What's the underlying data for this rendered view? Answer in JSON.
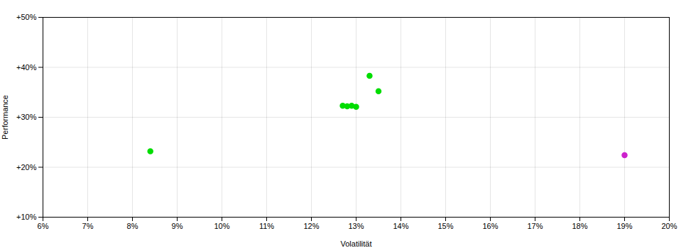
{
  "chart_data": {
    "type": "scatter",
    "xlabel": "Volatilität",
    "ylabel": "Performance",
    "xlim": [
      0.06,
      0.2
    ],
    "ylim": [
      0.1,
      0.5
    ],
    "xticks": [
      {
        "value": 0.06,
        "label": "6%"
      },
      {
        "value": 0.07,
        "label": "7%"
      },
      {
        "value": 0.08,
        "label": "8%"
      },
      {
        "value": 0.09,
        "label": "9%"
      },
      {
        "value": 0.1,
        "label": "10%"
      },
      {
        "value": 0.11,
        "label": "11%"
      },
      {
        "value": 0.12,
        "label": "12%"
      },
      {
        "value": 0.13,
        "label": "13%"
      },
      {
        "value": 0.14,
        "label": "14%"
      },
      {
        "value": 0.15,
        "label": "15%"
      },
      {
        "value": 0.16,
        "label": "16%"
      },
      {
        "value": 0.17,
        "label": "17%"
      },
      {
        "value": 0.18,
        "label": "18%"
      },
      {
        "value": 0.19,
        "label": "19%"
      },
      {
        "value": 0.2,
        "label": "20%"
      }
    ],
    "yticks": [
      {
        "value": 0.1,
        "label": "+10%"
      },
      {
        "value": 0.2,
        "label": "+20%"
      },
      {
        "value": 0.3,
        "label": "+30%"
      },
      {
        "value": 0.4,
        "label": "+40%"
      },
      {
        "value": 0.5,
        "label": "+50%"
      }
    ],
    "grid": true,
    "series": [
      {
        "color": "#00dd00",
        "marker": "circle",
        "x": [
          0.127,
          0.128,
          0.129,
          0.13,
          0.135,
          0.133,
          0.084
        ],
        "values": [
          0.323,
          0.322,
          0.323,
          0.321,
          0.352,
          0.383,
          0.232
        ]
      },
      {
        "color": "#cc22cc",
        "marker": "circle",
        "x": [
          0.19
        ],
        "values": [
          0.224
        ]
      }
    ]
  }
}
